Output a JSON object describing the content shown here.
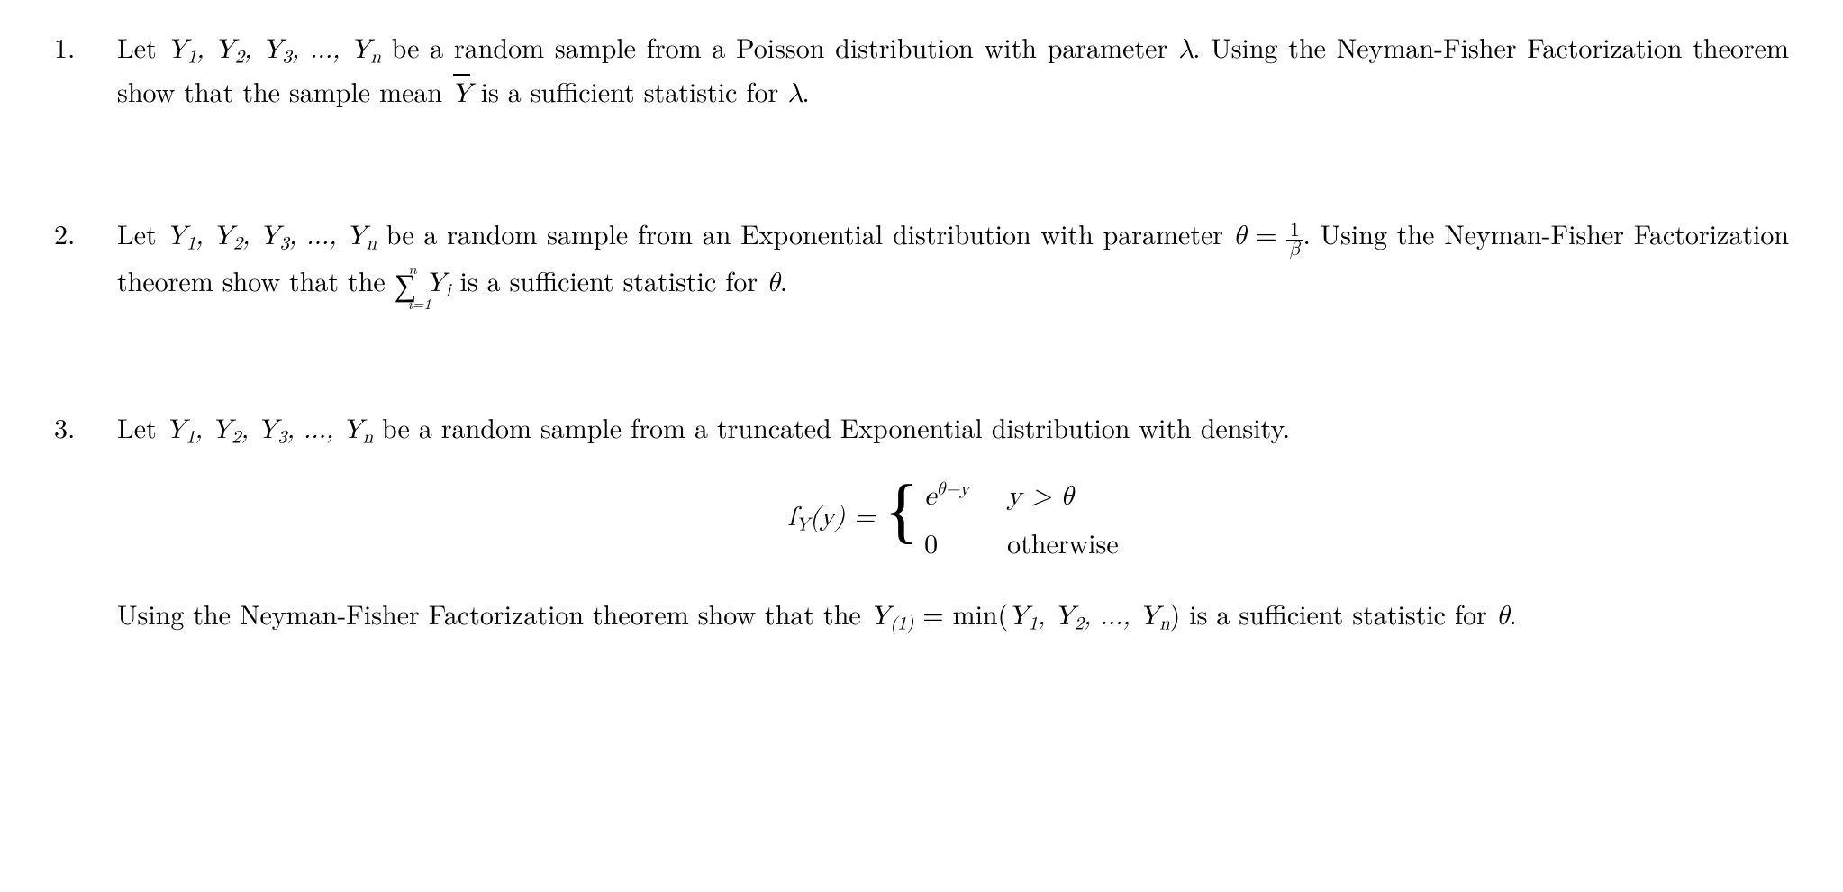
{
  "text_color": "#000000",
  "background_color": "#ffffff",
  "font_size_pt": 22,
  "problems": {
    "p1": {
      "prefix": "Let ",
      "sample": "Y₁, Y₂, Y₃, …, Yₙ",
      "mid1": " be a random sample from a Poisson distribution with parameter ",
      "param": "λ",
      "mid2": ". Using the Neyman-Fisher Factorization theorem show that the sample mean ",
      "stat": "Ȳ",
      "tail": " is a sufficient statistic for ",
      "param2": "λ",
      "end": "."
    },
    "p2": {
      "prefix": "Let ",
      "sample": "Y₁, Y₂, Y₃, …, Yₙ",
      "mid1": " be a random sample from an Exponential distribution with parameter ",
      "theta": "θ",
      "eq": " = ",
      "frac_num": "1",
      "frac_den": "β",
      "mid2": ". Using the Neyman-Fisher Factorization theorem show that the ",
      "sum_lo": "i=1",
      "sum_hi": "n",
      "sum_arg": " Yᵢ",
      "tail": " is a sufficient statistic for ",
      "theta2": "θ",
      "end": "."
    },
    "p3": {
      "prefix": "Let ",
      "sample": "Y₁, Y₂, Y₃, …, Yₙ",
      "mid1": " be a random sample from a truncated Exponential distribution with density.",
      "density_lhs": "f_Y(y) = ",
      "case1_val": "e^{θ−y}",
      "case1_cond": "y > θ",
      "case2_val": "0",
      "case2_cond": "otherwise",
      "mid2a": "Using the Neyman-Fisher Factorization theorem show that the ",
      "stat_lhs": "Y₍₁₎",
      "stat_eq": " = min(",
      "stat_args": "Y₁, Y₂, …, Yₙ",
      "stat_close": ")",
      "tail": " is a sufficient statistic for ",
      "theta": "θ",
      "end": "."
    }
  }
}
